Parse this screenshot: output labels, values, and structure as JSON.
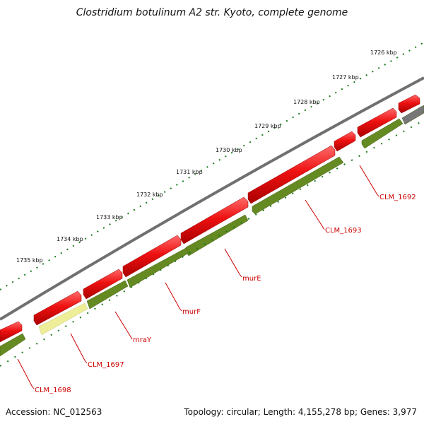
{
  "title": "Clostridium botulinum A2 str. Kyoto, complete genome",
  "ticks": [
    "1726 kbp",
    "1727 kbp",
    "1728 kbp",
    "1729 kbp",
    "1730 kbp",
    "1731 kbp",
    "1732 kbp",
    "1733 kbp",
    "1734 kbp",
    "1735 kbp"
  ],
  "gene_labels": [
    "CLM_1692",
    "CLM_1693",
    "murE",
    "murF",
    "mraY",
    "CLM_1697",
    "CLM_1698"
  ],
  "footer": {
    "accession": "Accession: NC_012563",
    "summary": "Topology: circular; Length: 4,155,278 bp; Genes: 3,977"
  },
  "colors": {
    "forward_gene": "#ee1111",
    "reverse_gene": "#668a22",
    "highlight_gene": "#eeee99",
    "backbone": "#808080",
    "tick_dots": "#1a7a1a",
    "label": "#cc0000"
  }
}
